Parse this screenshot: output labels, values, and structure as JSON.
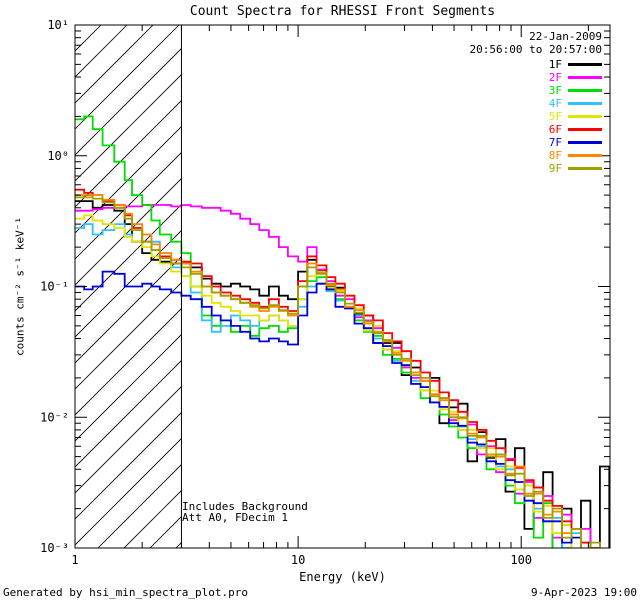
{
  "title": "Count Spectra for RHESSI Front Segments",
  "annotations": {
    "date": "22-Jan-2009",
    "time_range": "20:56:00 to 20:57:00",
    "background_note": "Includes Background",
    "attenuator_note": "Att A0, FDecim 1"
  },
  "footer": {
    "generated_by": "Generated by hsi_min_spectra_plot.pro",
    "timestamp": "9-Apr-2023 19:00"
  },
  "chart_data": {
    "type": "line",
    "title": "Count Spectra for RHESSI Front Segments",
    "xlabel": "Energy (keV)",
    "ylabel": "counts cm⁻² s⁻¹ keV⁻¹",
    "x_scale": "log",
    "y_scale": "log",
    "xlim": [
      1,
      250
    ],
    "ylim": [
      0.001,
      10
    ],
    "grid": false,
    "legend_position": "top-right",
    "x_ticks": [
      {
        "value": 1,
        "label": "1"
      },
      {
        "value": 10,
        "label": "10"
      },
      {
        "value": 100,
        "label": "100"
      }
    ],
    "y_ticks": [
      {
        "value": 0.001,
        "label": "10⁻³"
      },
      {
        "value": 0.01,
        "label": "10⁻²"
      },
      {
        "value": 0.1,
        "label": "10⁻¹"
      },
      {
        "value": 1,
        "label": "10⁰"
      },
      {
        "value": 10,
        "label": "10¹"
      }
    ],
    "hatched_region": {
      "x_from": 1,
      "x_to": 3
    },
    "energies_keV": [
      1.0,
      1.1,
      1.2,
      1.33,
      1.5,
      1.67,
      1.8,
      2.0,
      2.2,
      2.4,
      2.7,
      3.0,
      3.3,
      3.7,
      4.1,
      4.5,
      5.0,
      5.5,
      6.1,
      6.7,
      7.4,
      8.2,
      9.0,
      10.0,
      11.0,
      12.1,
      13.4,
      14.7,
      16.2,
      17.9,
      19.7,
      21.7,
      24.0,
      26.4,
      29.1,
      32.1,
      35.4,
      39.0,
      43.0,
      47.4,
      52.2,
      57.5,
      63.4,
      69.9,
      77.1,
      85.0,
      93.7,
      103.3,
      113.8,
      125.5,
      138.3,
      152.5,
      168.1,
      185.3,
      204.3,
      225.2,
      248.3
    ],
    "series": [
      {
        "name": "1F",
        "color": "#000000",
        "values": [
          0.45,
          0.45,
          0.4,
          0.42,
          0.38,
          0.3,
          0.22,
          0.18,
          0.16,
          0.155,
          0.15,
          0.15,
          0.14,
          0.115,
          0.105,
          0.1,
          0.105,
          0.1,
          0.095,
          0.085,
          0.1,
          0.085,
          0.08,
          0.13,
          0.16,
          0.132,
          0.1,
          0.098,
          0.068,
          0.062,
          0.06,
          0.037,
          0.037,
          0.037,
          0.021,
          0.024,
          0.016,
          0.02,
          0.009,
          0.0119,
          0.0127,
          0.0046,
          0.0077,
          0.0049,
          0.0068,
          0.0027,
          0.0058,
          0.0014,
          0.0029,
          0.0038,
          0.00095,
          0.002,
          0.00089,
          0.0023,
          0.00078,
          0.0042,
          0.00039
        ]
      },
      {
        "name": "2F",
        "color": "#ff00ff",
        "values": [
          0.38,
          0.38,
          0.39,
          0.4,
          0.4,
          0.41,
          0.41,
          0.42,
          0.42,
          0.42,
          0.41,
          0.42,
          0.41,
          0.4,
          0.4,
          0.38,
          0.36,
          0.33,
          0.3,
          0.27,
          0.24,
          0.2,
          0.17,
          0.155,
          0.2,
          0.135,
          0.11,
          0.085,
          0.08,
          0.058,
          0.055,
          0.048,
          0.033,
          0.034,
          0.024,
          0.02,
          0.019,
          0.013,
          0.014,
          0.0095,
          0.008,
          0.0088,
          0.0052,
          0.006,
          0.0038,
          0.0048,
          0.0026,
          0.0032,
          0.0017,
          0.0025,
          0.0012,
          0.0018,
          0.00075,
          0.0014,
          0.00055,
          0.0009,
          0.00035
        ]
      },
      {
        "name": "3F",
        "color": "#00dd00",
        "values": [
          1.9,
          2.0,
          1.6,
          1.2,
          0.9,
          0.65,
          0.5,
          0.42,
          0.32,
          0.25,
          0.22,
          0.18,
          0.1,
          0.06,
          0.05,
          0.055,
          0.045,
          0.05,
          0.042,
          0.048,
          0.05,
          0.045,
          0.048,
          0.08,
          0.11,
          0.118,
          0.095,
          0.08,
          0.07,
          0.055,
          0.045,
          0.042,
          0.03,
          0.028,
          0.022,
          0.018,
          0.014,
          0.013,
          0.0105,
          0.0085,
          0.007,
          0.0058,
          0.0072,
          0.004,
          0.0052,
          0.003,
          0.0022,
          0.003,
          0.0012,
          0.0022,
          0.0008,
          0.0015,
          0.00045,
          0.0011,
          0.0006,
          0.0003,
          0.0007
        ]
      },
      {
        "name": "4F",
        "color": "#33bfff",
        "values": [
          0.28,
          0.3,
          0.25,
          0.27,
          0.3,
          0.25,
          0.22,
          0.25,
          0.22,
          0.18,
          0.14,
          0.12,
          0.09,
          0.055,
          0.045,
          0.05,
          0.06,
          0.055,
          0.05,
          0.055,
          0.06,
          0.055,
          0.05,
          0.07,
          0.1,
          0.105,
          0.092,
          0.078,
          0.068,
          0.06,
          0.048,
          0.04,
          0.035,
          0.027,
          0.025,
          0.019,
          0.017,
          0.013,
          0.012,
          0.01,
          0.0085,
          0.0068,
          0.006,
          0.005,
          0.0042,
          0.004,
          0.0028,
          0.0026,
          0.002,
          0.0016,
          0.0017,
          0.001,
          0.0013,
          0.0008,
          0.001,
          0.00055,
          0.00085
        ]
      },
      {
        "name": "5F",
        "color": "#e3e300",
        "values": [
          0.33,
          0.35,
          0.32,
          0.3,
          0.28,
          0.24,
          0.22,
          0.2,
          0.17,
          0.15,
          0.13,
          0.12,
          0.1,
          0.085,
          0.075,
          0.07,
          0.065,
          0.06,
          0.06,
          0.055,
          0.06,
          0.055,
          0.05,
          0.08,
          0.12,
          0.13,
          0.098,
          0.092,
          0.068,
          0.068,
          0.046,
          0.05,
          0.033,
          0.032,
          0.025,
          0.022,
          0.016,
          0.016,
          0.0115,
          0.011,
          0.008,
          0.008,
          0.0058,
          0.0058,
          0.004,
          0.0042,
          0.0028,
          0.003,
          0.0019,
          0.0021,
          0.0013,
          0.0015,
          0.0009,
          0.00095,
          0.0006,
          0.0007,
          0.00045
        ]
      },
      {
        "name": "6F",
        "color": "#ff0000",
        "values": [
          0.55,
          0.52,
          0.5,
          0.45,
          0.42,
          0.35,
          0.28,
          0.22,
          0.19,
          0.17,
          0.16,
          0.155,
          0.15,
          0.12,
          0.1,
          0.09,
          0.085,
          0.08,
          0.075,
          0.07,
          0.08,
          0.07,
          0.065,
          0.11,
          0.17,
          0.145,
          0.118,
          0.105,
          0.085,
          0.072,
          0.06,
          0.055,
          0.044,
          0.038,
          0.032,
          0.027,
          0.022,
          0.019,
          0.0155,
          0.0135,
          0.011,
          0.0092,
          0.008,
          0.0066,
          0.0058,
          0.0047,
          0.0041,
          0.0033,
          0.0029,
          0.0023,
          0.0021,
          0.0016,
          0.0014,
          0.0011,
          0.001,
          0.00075,
          0.0008
        ]
      },
      {
        "name": "7F",
        "color": "#0000dd",
        "values": [
          0.1,
          0.095,
          0.1,
          0.13,
          0.125,
          0.1,
          0.1,
          0.105,
          0.1,
          0.095,
          0.09,
          0.085,
          0.08,
          0.07,
          0.06,
          0.055,
          0.05,
          0.045,
          0.04,
          0.038,
          0.04,
          0.038,
          0.036,
          0.06,
          0.09,
          0.105,
          0.095,
          0.07,
          0.068,
          0.052,
          0.048,
          0.037,
          0.035,
          0.026,
          0.025,
          0.018,
          0.017,
          0.013,
          0.012,
          0.009,
          0.0086,
          0.0064,
          0.0062,
          0.0046,
          0.0044,
          0.0033,
          0.0032,
          0.0023,
          0.0022,
          0.0016,
          0.0016,
          0.0011,
          0.0012,
          0.00078,
          0.00085,
          0.00055,
          0.0006
        ]
      },
      {
        "name": "8F",
        "color": "#ff8800",
        "values": [
          0.5,
          0.48,
          0.5,
          0.46,
          0.42,
          0.36,
          0.3,
          0.25,
          0.21,
          0.18,
          0.16,
          0.15,
          0.13,
          0.1,
          0.09,
          0.085,
          0.08,
          0.075,
          0.07,
          0.065,
          0.07,
          0.065,
          0.06,
          0.1,
          0.15,
          0.128,
          0.102,
          0.095,
          0.07,
          0.066,
          0.052,
          0.045,
          0.038,
          0.031,
          0.027,
          0.022,
          0.019,
          0.015,
          0.0135,
          0.0105,
          0.0098,
          0.0075,
          0.007,
          0.0052,
          0.005,
          0.0037,
          0.0042,
          0.0026,
          0.0026,
          0.0018,
          0.0019,
          0.0013,
          0.0014,
          0.0009,
          0.001,
          0.00065,
          0.0007
        ]
      },
      {
        "name": "9F",
        "color": "#9f9f00",
        "values": [
          0.48,
          0.5,
          0.47,
          0.44,
          0.4,
          0.33,
          0.27,
          0.22,
          0.19,
          0.165,
          0.15,
          0.14,
          0.125,
          0.1,
          0.09,
          0.085,
          0.08,
          0.075,
          0.072,
          0.068,
          0.072,
          0.066,
          0.062,
          0.1,
          0.14,
          0.125,
          0.105,
          0.09,
          0.074,
          0.063,
          0.054,
          0.044,
          0.039,
          0.03,
          0.028,
          0.021,
          0.02,
          0.0145,
          0.014,
          0.01,
          0.01,
          0.0072,
          0.0072,
          0.005,
          0.0052,
          0.0036,
          0.0037,
          0.0025,
          0.0027,
          0.0017,
          0.002,
          0.0012,
          0.0014,
          0.00085,
          0.0011,
          0.0006,
          0.00085
        ]
      }
    ]
  }
}
